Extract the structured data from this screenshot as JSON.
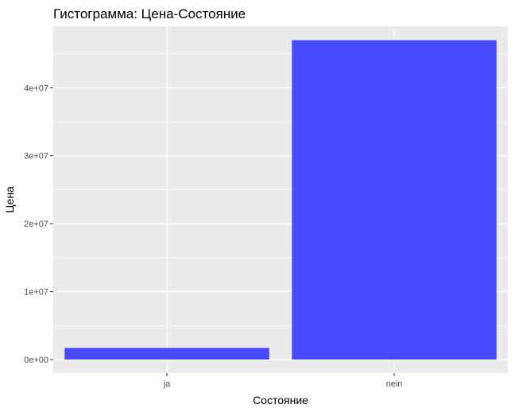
{
  "chart_data": {
    "type": "bar",
    "title": "Гистограмма: Цена-Состояние",
    "xlabel": "Состояние",
    "ylabel": "Цена",
    "categories": [
      "ja",
      "nein"
    ],
    "values": [
      1700000,
      47000000
    ],
    "ylim": [
      0,
      48000000
    ],
    "yticks": [
      0,
      10000000,
      20000000,
      30000000,
      40000000
    ],
    "ytick_labels": [
      "0e+00",
      "1e+07",
      "2e+07",
      "3e+07",
      "4e+07"
    ],
    "bar_color": "#4444ff",
    "panel_background": "#ebebeb",
    "grid_color": "#ffffff",
    "grid": true,
    "legend": "none"
  }
}
